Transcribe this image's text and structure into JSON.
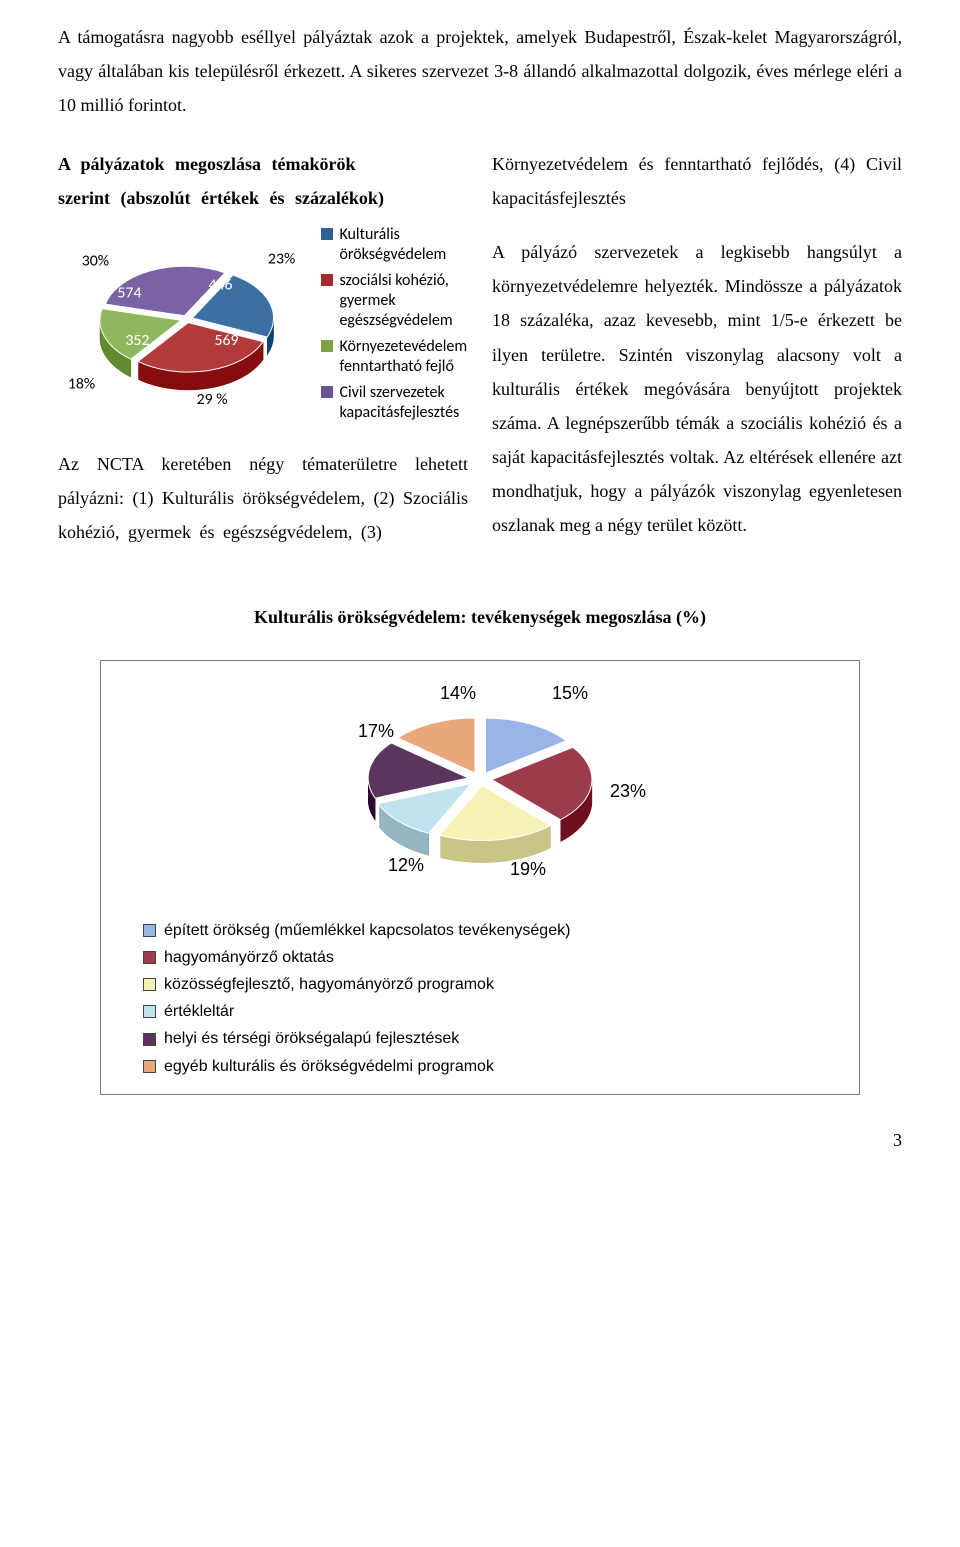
{
  "intro": "A támogatásra nagyobb eséllyel pályáztak azok a projektek, amelyek Budapestről, Észak-kelet Magyarországról, vagy általában kis településről érkezett. A sikeres szervezet 3-8 állandó alkalmazottal dolgozik, éves mérlege eléri a 10 millió forintot.",
  "left": {
    "heading_l1": "A pályázatok megoszlása témakörök",
    "heading_l2": "szerint (abszolút értékek és százalékok)",
    "chart1": {
      "labels": {
        "top_left": "30%",
        "v_574": "574",
        "v_446": "446",
        "top_right": "23%",
        "v_352": "352",
        "v_569": "569",
        "bottom_left": "18%",
        "bottom_mid": "29 %"
      },
      "legend": [
        {
          "color": "#2f5f93",
          "text": "Kulturális örökségvédelem"
        },
        {
          "color": "#a62b2b",
          "text": "szociálsi kohézió, gyermek egészségvédelem"
        },
        {
          "color": "#7da24a",
          "text": "Környezetevédelem fenntartható fejlő"
        },
        {
          "color": "#6a528f",
          "text": "Civil szervezetek kapacitásfejlesztés"
        }
      ],
      "colors": {
        "slice1": "#3d6fa3",
        "slice2": "#b23a3a",
        "slice3": "#8fb85d",
        "slice4": "#7b62a5"
      }
    },
    "ncta": "Az NCTA keretében négy tématerületre lehetett pályázni: (1) Kulturális örökségvédelem, (2) Szociális kohézió, gyermek és egészségvédelem, (3)"
  },
  "right": {
    "heading": "Környezetvédelem és fenntartható fejlődés, (4) Civil kapacitásfejlesztés",
    "body": "A pályázó szervezetek a legkisebb hangsúlyt a környezetvédelemre helyezték. Mindössze a pályázatok 18 százaléka, azaz kevesebb, mint 1/5-e érkezett be ilyen területre. Szintén viszonylag alacsony volt a kulturális értékek megóvására benyújtott projektek száma. A legnépszerűbb témák a szociális kohézió és a saját kapacitásfejlesztés voltak. Az eltérések ellenére azt mondhatjuk, hogy a pályázók viszonylag egyenletesen oszlanak meg a négy terület között."
  },
  "chart2": {
    "title": "Kulturális örökségvédelem: tevékenységek megoszlása (%)",
    "labels": {
      "p14": "14%",
      "p15": "15%",
      "p17": "17%",
      "p23": "23%",
      "p12": "12%",
      "p19": "19%"
    },
    "legend": [
      {
        "color": "#9ab4e7",
        "text": "épített örökség (műemlékkel kapcsolatos tevékenységek)"
      },
      {
        "color": "#9c3b4c",
        "text": "hagyományörző oktatás"
      },
      {
        "color": "#f6f2b3",
        "text": "közösségfejlesztő, hagyományörző programok"
      },
      {
        "color": "#bfe3ef",
        "text": "értékleltár"
      },
      {
        "color": "#5a355d",
        "text": "helyi és térségi örökségalapú fejlesztések"
      },
      {
        "color": "#e9a77c",
        "text": "egyéb kulturális és örökségvédelmi programok"
      }
    ],
    "slice_colors": [
      "#9ab4e7",
      "#9c3b4c",
      "#f6f2b3",
      "#bfe3ef",
      "#5a355d",
      "#e9a77c"
    ]
  },
  "page_num": "3"
}
